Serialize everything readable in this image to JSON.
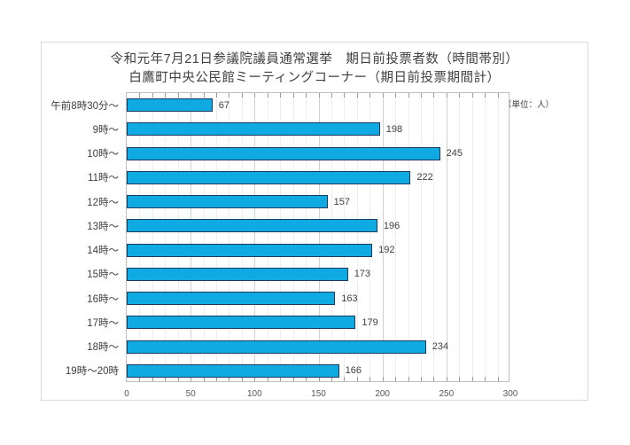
{
  "chart_data": {
    "type": "bar",
    "orientation": "horizontal",
    "title": "令和元年7月21日参議院議員通常選挙　期日前投票者数（時間帯別）",
    "subtitle": "白鷹町中央公民館ミーティングコーナー（期日前投票期間計）",
    "unit_label": "（単位：人）",
    "categories": [
      "午前8時30分～",
      "9時～",
      "10時～",
      "11時～",
      "12時～",
      "13時～",
      "14時～",
      "15時～",
      "16時～",
      "17時～",
      "18時～",
      "19時～20時"
    ],
    "values": [
      67,
      198,
      245,
      222,
      157,
      196,
      192,
      173,
      163,
      179,
      234,
      166
    ],
    "xlim": [
      0,
      300
    ],
    "x_ticks": [
      0,
      50,
      100,
      150,
      200,
      250,
      300
    ],
    "minor_tick_step": 10,
    "grid": true,
    "legend": false,
    "data_labels": true,
    "bar_fill_color": "#0faae1",
    "bar_border_color": "#1c3a5e",
    "title_color": "#404040",
    "axis_label_color": "#595959"
  }
}
